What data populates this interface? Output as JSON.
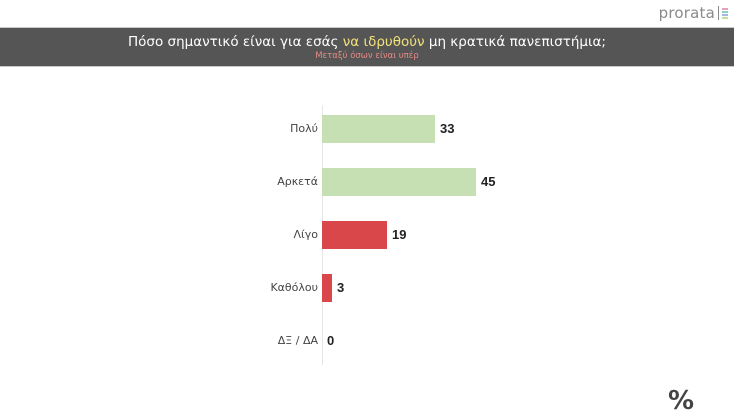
{
  "logo": {
    "text": "prorata"
  },
  "header": {
    "title_pre": "Πόσο σημαντικό είναι για εσάς ",
    "title_highlight": "να ιδρυθούν",
    "title_post": " μη κρατικά πανεπιστήμια;",
    "subtitle": "Μεταξύ όσων είναι υπέρ"
  },
  "unit_symbol": "%",
  "colors": {
    "positive": "#c6e0b4",
    "negative": "#d9474a",
    "header_bg": "#555555",
    "highlight": "#f2e27a",
    "subtitle": "#e88a86"
  },
  "chart_data": {
    "type": "bar",
    "orientation": "horizontal",
    "title": "Πόσο σημαντικό είναι για εσάς να ιδρυθούν μη κρατικά πανεπιστήμια;",
    "subtitle": "Μεταξύ όσων είναι υπέρ",
    "categories": [
      "Πολύ",
      "Αρκετά",
      "Λίγο",
      "Καθόλου",
      "ΔΞ / ΔΑ"
    ],
    "values": [
      33,
      45,
      19,
      3,
      0
    ],
    "labels": [
      "33",
      "45",
      "19",
      "3",
      "0"
    ],
    "bar_colors": [
      "#c6e0b4",
      "#c6e0b4",
      "#d9474a",
      "#d9474a",
      "#d9474a"
    ],
    "xlabel": "",
    "ylabel": "",
    "unit": "%",
    "grid": false,
    "legend": false
  }
}
